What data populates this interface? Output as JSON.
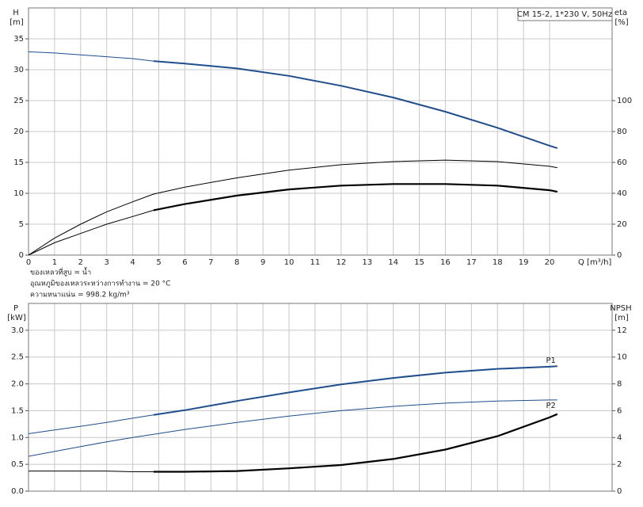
{
  "chart_data": [
    {
      "type": "line",
      "title": "CM 15-2, 1*230 V, 50Hz",
      "ylabel": "H",
      "yunit": "[m]",
      "y2label": "eta",
      "y2unit": "[%]",
      "xlabel": "Q [m³/h]",
      "notes": [
        "ของเหลวที่สูบ = น้ำ",
        "อุณหภูมิของเหลวระหว่างการทำงาน = 20 °C",
        "ความหนาแน่น = 998.2 kg/m³"
      ],
      "x": [
        0,
        1,
        2,
        3,
        4,
        4.8,
        6,
        8,
        10,
        12,
        14,
        16,
        18,
        20,
        20.3
      ],
      "xlim": [
        0,
        22.4
      ],
      "xticks": [
        0,
        1,
        2,
        3,
        4,
        5,
        6,
        7,
        8,
        9,
        10,
        11,
        12,
        13,
        14,
        15,
        16,
        17,
        18,
        19,
        20
      ],
      "ylim": [
        0,
        40
      ],
      "yticks": [
        0,
        5,
        10,
        15,
        20,
        25,
        30,
        35
      ],
      "y2lim": [
        0,
        160
      ],
      "y2ticks": [
        0,
        20,
        40,
        60,
        80,
        100
      ],
      "grid": true,
      "series": [
        {
          "color": "#1f4e8c",
          "width": 1,
          "values": [
            32.9,
            32.7,
            32.4,
            32.1,
            31.8,
            31.4,
            null,
            null,
            null,
            null,
            null,
            null,
            null,
            null,
            null
          ]
        },
        {
          "color": "#1f4e8c",
          "width": 2,
          "values": [
            null,
            null,
            null,
            null,
            null,
            31.4,
            31.0,
            30.2,
            29.0,
            27.4,
            25.5,
            23.2,
            20.6,
            17.7,
            17.3
          ]
        },
        {
          "color": "#000000",
          "width": 1,
          "axis": "y2",
          "values": [
            0,
            11,
            20,
            28,
            34.5,
            39.5,
            44,
            50,
            55,
            58.5,
            60.5,
            61.5,
            60.5,
            57.5,
            56.5
          ]
        },
        {
          "color": "#000000",
          "width": 1,
          "axis": "y2",
          "values": [
            0,
            8,
            14,
            20,
            25,
            29,
            null,
            null,
            null,
            null,
            null,
            null,
            null,
            null,
            null
          ]
        },
        {
          "color": "#000000",
          "width": 2.2,
          "axis": "y2",
          "values": [
            null,
            null,
            null,
            null,
            null,
            29,
            33,
            38.5,
            42.5,
            45,
            46,
            46,
            45,
            42,
            41
          ]
        }
      ]
    },
    {
      "type": "line",
      "ylabel": "P",
      "yunit": "[kW]",
      "y2label": "NPSH",
      "y2unit": "[m]",
      "x": [
        0,
        1,
        2,
        3,
        4,
        4.8,
        6,
        8,
        10,
        12,
        14,
        16,
        18,
        20,
        20.3
      ],
      "xlim": [
        0,
        22.4
      ],
      "ylim": [
        0,
        3.5
      ],
      "yticks": [
        {
          "value": 0,
          "label": "0.0"
        },
        0.5,
        {
          "value": 1,
          "label": "1.0"
        },
        1.5,
        {
          "value": 2,
          "label": "2.0"
        },
        2.5,
        {
          "value": 3,
          "label": "3.0"
        }
      ],
      "y2lim": [
        0,
        14
      ],
      "y2ticks": [
        0,
        2,
        4,
        6,
        8,
        10,
        12
      ],
      "grid": true,
      "series": [
        {
          "color": "#1f4e8c",
          "width": 1,
          "values": [
            1.07,
            1.14,
            1.21,
            1.28,
            1.36,
            1.42,
            null,
            null,
            null,
            null,
            null,
            null,
            null,
            null,
            null
          ]
        },
        {
          "name": "P1",
          "color": "#1f4e8c",
          "width": 2,
          "values": [
            null,
            null,
            null,
            null,
            null,
            1.42,
            1.51,
            1.68,
            1.84,
            1.99,
            2.11,
            2.21,
            2.28,
            2.32,
            2.33
          ]
        },
        {
          "name": "P2",
          "color": "#1f4e8c",
          "width": 1,
          "values": [
            0.65,
            0.74,
            0.83,
            0.92,
            1.0,
            1.06,
            1.15,
            1.28,
            1.4,
            1.5,
            1.58,
            1.64,
            1.68,
            1.7,
            1.7
          ]
        },
        {
          "color": "#000000",
          "width": 1,
          "axis": "y2",
          "values": [
            1.5,
            1.5,
            1.5,
            1.5,
            1.45,
            1.45,
            null,
            null,
            null,
            null,
            null,
            null,
            null,
            null,
            null
          ]
        },
        {
          "color": "#000000",
          "width": 2.2,
          "axis": "y2",
          "values": [
            null,
            null,
            null,
            null,
            null,
            1.45,
            1.45,
            1.5,
            1.7,
            1.95,
            2.4,
            3.1,
            4.1,
            5.5,
            5.75
          ]
        }
      ]
    }
  ]
}
